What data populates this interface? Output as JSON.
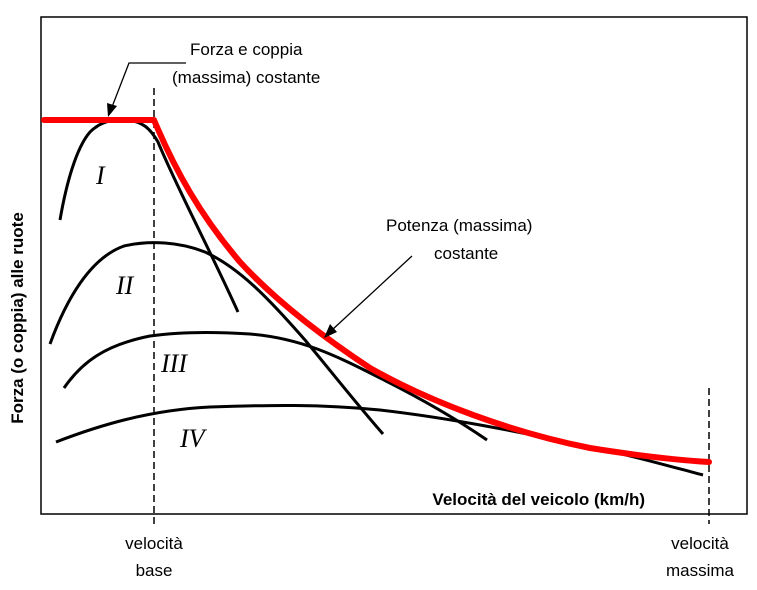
{
  "chart_data": {
    "type": "line",
    "ylabel": "Forza (o coppia) alle ruote",
    "xlabel": "Velocità del veicolo (km/h)",
    "annotations": {
      "constant_torque": [
        "Forza e coppia",
        "(massima) costante"
      ],
      "constant_power": [
        "Potenza (massima)",
        "costante"
      ]
    },
    "x_markers": {
      "base": [
        "velocità",
        "base"
      ],
      "max": [
        "velocità",
        "massima"
      ]
    },
    "gear_labels": [
      "I",
      "II",
      "III",
      "IV"
    ],
    "colors": {
      "envelope": "#ff0000",
      "curves": "#000000",
      "axes": "#000000"
    }
  }
}
